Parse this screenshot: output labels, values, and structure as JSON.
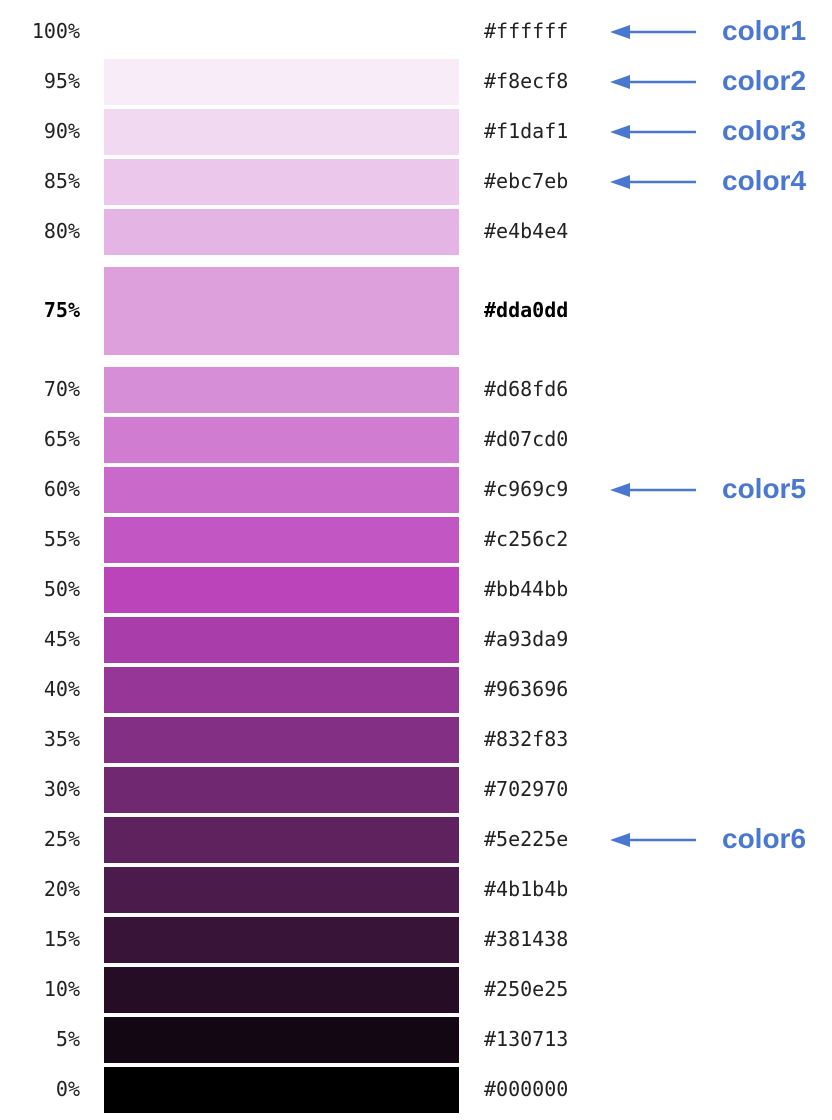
{
  "accent_color": "#4a78d0",
  "rows": [
    {
      "pct": "100%",
      "hex": "#ffffff",
      "swatch_color": "#ffffff"
    },
    {
      "pct": "95%",
      "hex": "#f8ecf8",
      "swatch_color": "#f8ecf8"
    },
    {
      "pct": "90%",
      "hex": "#f1daf1",
      "swatch_color": "#f1daf1"
    },
    {
      "pct": "85%",
      "hex": "#ebc7eb",
      "swatch_color": "#ebc7eb"
    },
    {
      "pct": "80%",
      "hex": "#e4b4e4",
      "swatch_color": "#e4b4e4"
    },
    {
      "pct": "75%",
      "hex": "#dda0dd",
      "swatch_color": "#dda0dd",
      "emphasis": true
    },
    {
      "pct": "70%",
      "hex": "#d68fd6",
      "swatch_color": "#d68fd6"
    },
    {
      "pct": "65%",
      "hex": "#d07cd0",
      "swatch_color": "#d07cd0"
    },
    {
      "pct": "60%",
      "hex": "#c969c9",
      "swatch_color": "#c969c9"
    },
    {
      "pct": "55%",
      "hex": "#c256c2",
      "swatch_color": "#c256c2"
    },
    {
      "pct": "50%",
      "hex": "#bb44bb",
      "swatch_color": "#bb44bb"
    },
    {
      "pct": "45%",
      "hex": "#a93da9",
      "swatch_color": "#a93da9"
    },
    {
      "pct": "40%",
      "hex": "#963696",
      "swatch_color": "#963696"
    },
    {
      "pct": "35%",
      "hex": "#832f83",
      "swatch_color": "#832f83"
    },
    {
      "pct": "30%",
      "hex": "#702970",
      "swatch_color": "#702970"
    },
    {
      "pct": "25%",
      "hex": "#5e225e",
      "swatch_color": "#5e225e"
    },
    {
      "pct": "20%",
      "hex": "#4b1b4b",
      "swatch_color": "#4b1b4b"
    },
    {
      "pct": "15%",
      "hex": "#381438",
      "swatch_color": "#381438"
    },
    {
      "pct": "10%",
      "hex": "#250e25",
      "swatch_color": "#250e25"
    },
    {
      "pct": "5%",
      "hex": "#130713",
      "swatch_color": "#130713"
    },
    {
      "pct": "0%",
      "hex": "#000000",
      "swatch_color": "#000000"
    }
  ],
  "callouts": [
    {
      "hex": "#ffffff",
      "label": "color1",
      "icon": "left-arrow-icon"
    },
    {
      "hex": "#f8ecf8",
      "label": "color2",
      "icon": "left-arrow-icon"
    },
    {
      "hex": "#f1daf1",
      "label": "color3",
      "icon": "left-arrow-icon"
    },
    {
      "hex": "#ebc7eb",
      "label": "color4",
      "icon": "left-arrow-icon"
    },
    {
      "hex": "#c969c9",
      "label": "color5",
      "icon": "left-arrow-icon"
    },
    {
      "hex": "#5e225e",
      "label": "color6",
      "icon": "left-arrow-icon"
    }
  ]
}
